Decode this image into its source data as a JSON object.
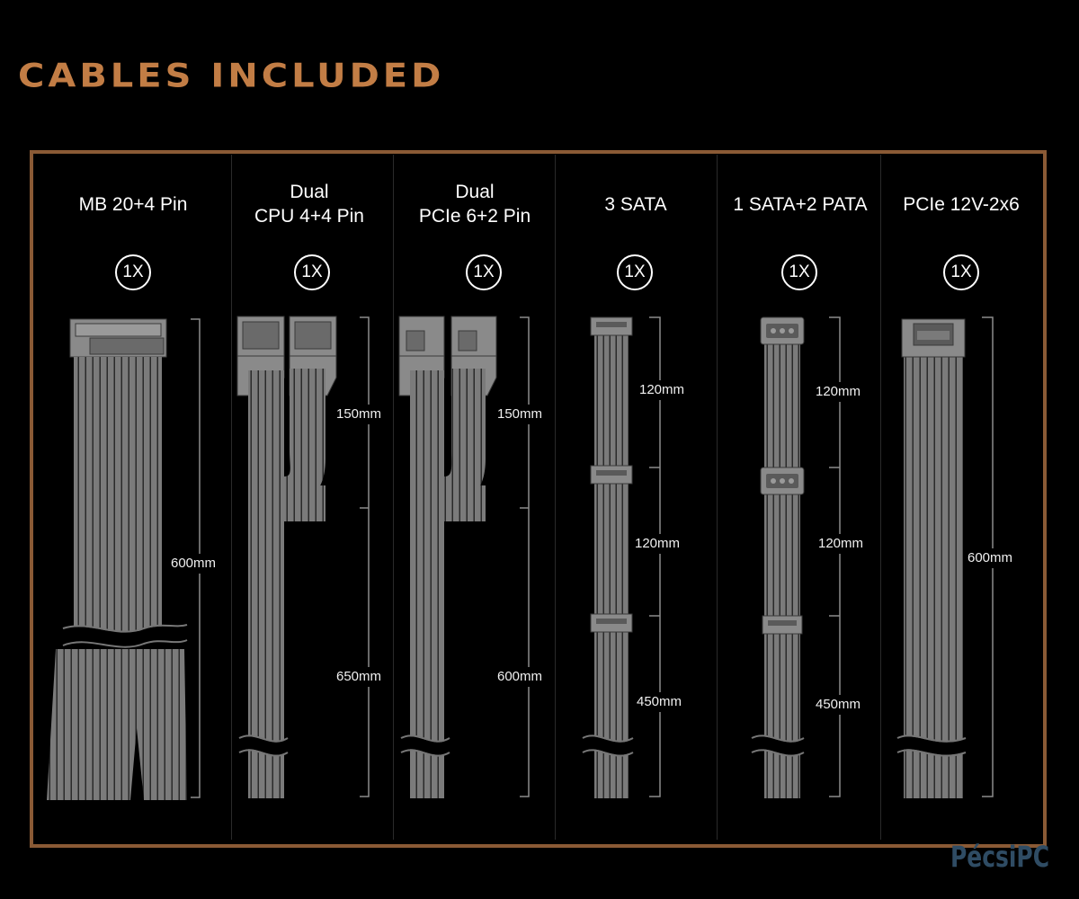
{
  "heading": "CABLES INCLUDED",
  "watermark": "PécsiPC",
  "colors": {
    "accent": "#c27d45",
    "frame": "#8a5a35",
    "cable": "#7a7a7a",
    "background": "#000000"
  },
  "columns": [
    {
      "title_lines": [
        "MB 20+4 Pin"
      ],
      "qty": "1X",
      "lengths": [
        "600mm"
      ]
    },
    {
      "title_lines": [
        "Dual",
        "CPU 4+4 Pin"
      ],
      "qty": "1X",
      "lengths": [
        "150mm",
        "650mm"
      ]
    },
    {
      "title_lines": [
        "Dual",
        "PCIe 6+2 Pin"
      ],
      "qty": "1X",
      "lengths": [
        "150mm",
        "600mm"
      ]
    },
    {
      "title_lines": [
        "3 SATA"
      ],
      "qty": "1X",
      "lengths": [
        "120mm",
        "120mm",
        "450mm"
      ]
    },
    {
      "title_lines": [
        "1 SATA+2 PATA"
      ],
      "qty": "1X",
      "lengths": [
        "120mm",
        "120mm",
        "450mm"
      ]
    },
    {
      "title_lines": [
        "PCIe 12V-2x6"
      ],
      "qty": "1X",
      "lengths": [
        "600mm"
      ]
    }
  ]
}
